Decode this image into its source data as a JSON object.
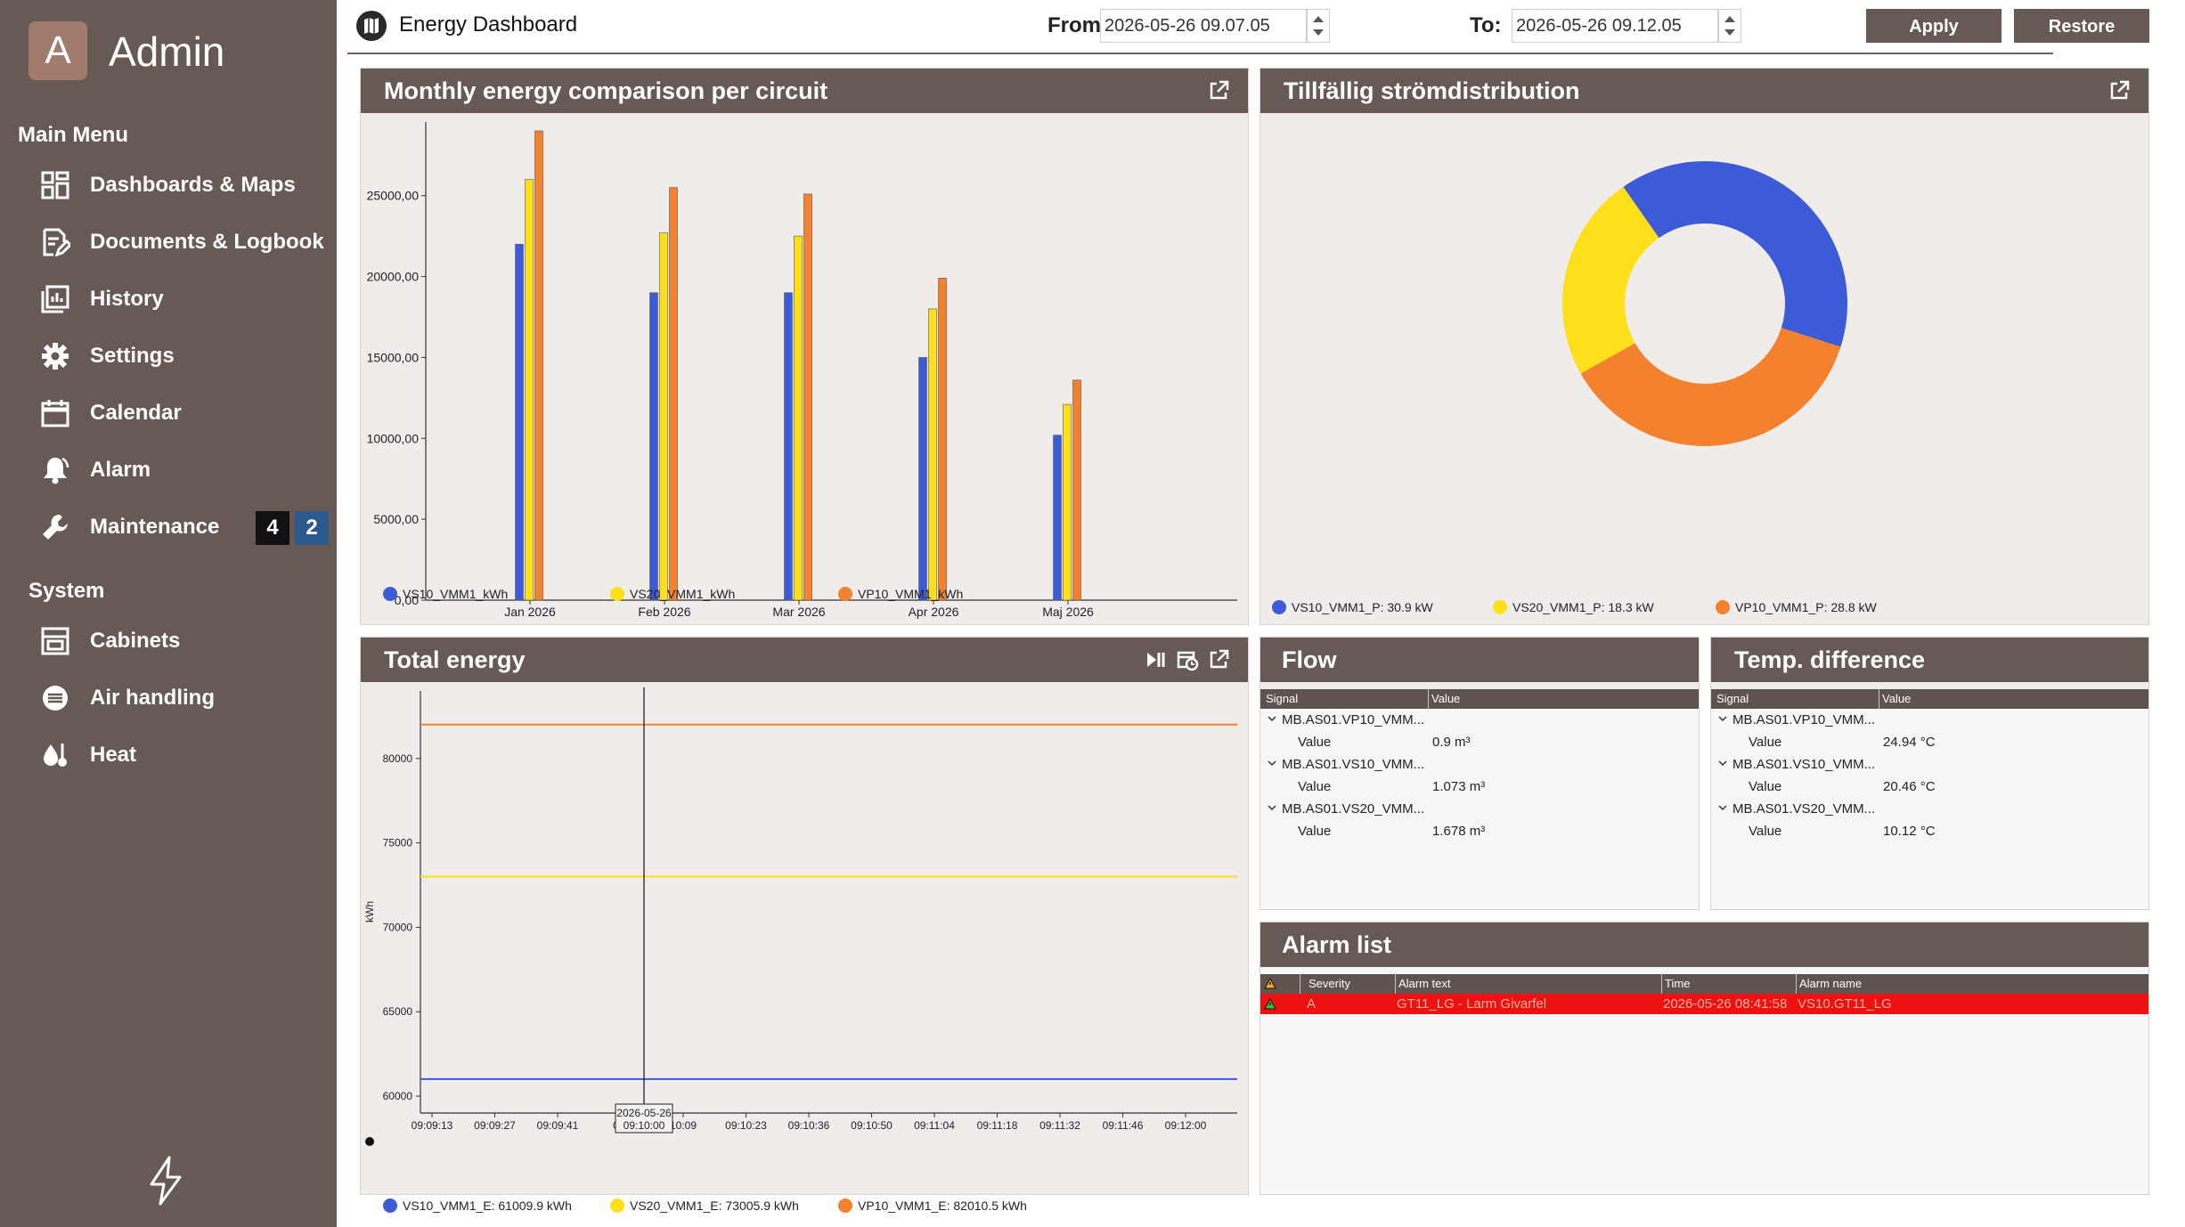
{
  "sidebar": {
    "avatar_letter": "A",
    "admin_name": "Admin",
    "main_menu_title": "Main Menu",
    "main_items": [
      {
        "label": "Dashboards & Maps",
        "icon": "dashboard-icon"
      },
      {
        "label": "Documents & Logbook",
        "icon": "document-edit-icon"
      },
      {
        "label": "History",
        "icon": "history-chart-icon"
      },
      {
        "label": "Settings",
        "icon": "gear-icon"
      },
      {
        "label": "Calendar",
        "icon": "calendar-icon"
      },
      {
        "label": "Alarm",
        "icon": "bell-icon"
      },
      {
        "label": "Maintenance",
        "icon": "wrench-icon"
      }
    ],
    "maintenance_badges": [
      "4",
      "2"
    ],
    "system_title": "System",
    "system_items": [
      {
        "label": "Cabinets",
        "icon": "cabinet-icon"
      },
      {
        "label": "Air handling",
        "icon": "fan-icon"
      },
      {
        "label": "Heat",
        "icon": "heat-icon"
      }
    ]
  },
  "header": {
    "title": "Energy Dashboard",
    "from_label": "From",
    "from_value": "2026-05-26 09.07.05",
    "to_label": "To:",
    "to_value": "2026-05-26 09.12.05",
    "apply_label": "Apply",
    "restore_label": "Restore"
  },
  "colors": {
    "blue": "#3d5bd6",
    "yellow": "#fde01a",
    "orange": "#f4812e",
    "brown": "#675a55",
    "alarm_red": "#ee1111"
  },
  "monthly": {
    "title": "Monthly energy comparison per circuit"
  },
  "distribution": {
    "title": "Tillfällig strömdistribution"
  },
  "total": {
    "title": "Total energy",
    "cursor_label_date": "2026-05-26",
    "cursor_label_time": "09:10:00"
  },
  "flow": {
    "title": "Flow",
    "col_signal": "Signal",
    "col_value": "Value",
    "rows": [
      {
        "signal": "MB.AS01.VP10_VMM...",
        "label": "Value",
        "value": "0.9 m³"
      },
      {
        "signal": "MB.AS01.VS10_VMM...",
        "label": "Value",
        "value": "1.073 m³"
      },
      {
        "signal": "MB.AS01.VS20_VMM...",
        "label": "Value",
        "value": "1.678 m³"
      }
    ]
  },
  "temp": {
    "title": "Temp. difference",
    "col_signal": "Signal",
    "col_value": "Value",
    "rows": [
      {
        "signal": "MB.AS01.VP10_VMM...",
        "label": "Value",
        "value": "24.94 °C"
      },
      {
        "signal": "MB.AS01.VS10_VMM...",
        "label": "Value",
        "value": "20.46 °C"
      },
      {
        "signal": "MB.AS01.VS20_VMM...",
        "label": "Value",
        "value": "10.12 °C"
      }
    ]
  },
  "alarm_list": {
    "title": "Alarm list",
    "columns": [
      "Severity",
      "Alarm text",
      "Time",
      "Alarm name"
    ],
    "rows": [
      {
        "severity": "A",
        "text": "GT11_LG - Larm Givarfel",
        "time": "2026-05-26 08:41:58",
        "name": "VS10.GT11_LG"
      }
    ]
  },
  "chart_data": [
    {
      "type": "bar",
      "title": "Monthly energy comparison per circuit",
      "categories": [
        "Jan 2026",
        "Feb 2026",
        "Mar 2026",
        "Apr 2026",
        "Maj 2026"
      ],
      "series": [
        {
          "name": "VS10_VMM1_kWh",
          "color": "#3d5bd6",
          "values": [
            22000,
            19000,
            19000,
            15000,
            10200
          ]
        },
        {
          "name": "VS20_VMM1_kWh",
          "color": "#fde01a",
          "values": [
            26000,
            22700,
            22500,
            18000,
            12100
          ]
        },
        {
          "name": "VP10_VMM1_kWh",
          "color": "#f4812e",
          "values": [
            29000,
            25500,
            25100,
            19900,
            13600
          ]
        }
      ],
      "ylim": [
        0,
        29000
      ],
      "yticks": [
        "0,00",
        "5000,00",
        "10000,00",
        "15000,00",
        "20000,00",
        "25000,00"
      ],
      "legend": "bottom"
    },
    {
      "type": "pie",
      "title": "Tillfällig strömdistribution",
      "donut": true,
      "slices": [
        {
          "name": "VS10_VMM1_P",
          "legend": "VS10_VMM1_P: 30.9 kW",
          "value": 30.9,
          "color": "#3d5bd6"
        },
        {
          "name": "VP10_VMM1_P",
          "legend": "VP10_VMM1_P: 28.8 kW",
          "value": 28.8,
          "color": "#f4812e"
        },
        {
          "name": "VS20_VMM1_P",
          "legend": "VS20_VMM1_P: 18.3 kW",
          "value": 18.3,
          "color": "#fde01a"
        }
      ],
      "legend_order": [
        0,
        2,
        1
      ],
      "legend": "bottom"
    },
    {
      "type": "line",
      "title": "Total energy",
      "ylabel": "kWh",
      "ylim": [
        59000,
        84000
      ],
      "yticks": [
        "60000",
        "65000",
        "70000",
        "75000",
        "80000"
      ],
      "xticks": [
        "09:09:13",
        "09:09:27",
        "09:09:41",
        "09:",
        "10:09",
        "09:10:23",
        "09:10:36",
        "09:10:50",
        "09:11:04",
        "09:11:18",
        "09:11:32",
        "09:11:46",
        "09:12:00"
      ],
      "series": [
        {
          "name": "VS10_VMM1_E",
          "legend": "VS10_VMM1_E: 61009.9 kWh",
          "color": "#3d5bd6",
          "value": 61009.9
        },
        {
          "name": "VS20_VMM1_E",
          "legend": "VS20_VMM1_E: 73005.9 kWh",
          "color": "#fde01a",
          "value": 73005.9
        },
        {
          "name": "VP10_VMM1_E",
          "legend": "VP10_VMM1_E: 82010.5 kWh",
          "color": "#f4812e",
          "value": 82010.5
        }
      ],
      "legend": "bottom"
    }
  ]
}
